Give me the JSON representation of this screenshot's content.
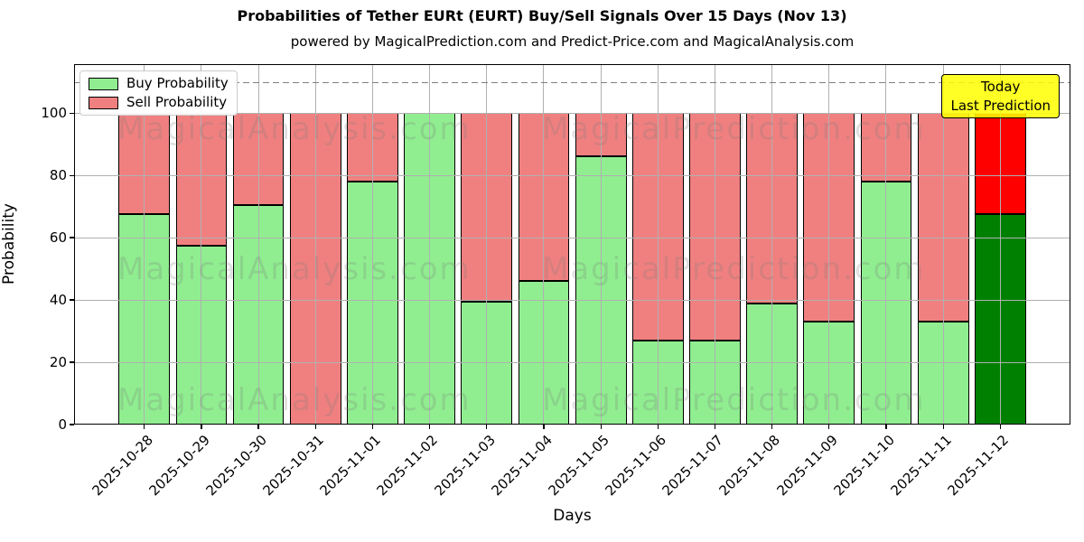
{
  "figure": {
    "title": "Probabilities of Tether EURt (EURT) Buy/Sell Signals Over 15 Days (Nov 13)",
    "subtitle": "powered by MagicalPrediction.com and Predict-Price.com and MagicalAnalysis.com"
  },
  "axes": {
    "xlabel": "Days",
    "ylabel": "Probability",
    "yticks": [
      0,
      20,
      40,
      60,
      80,
      100
    ],
    "dashed_line_y": 110,
    "grid_color": "#b0b0b0",
    "dashed_line_color": "#808080",
    "spine_color": "#000000"
  },
  "legend": {
    "items": [
      {
        "label": "Buy Probability",
        "color": "#90ee90"
      },
      {
        "label": "Sell Probability",
        "color": "#f08080"
      }
    ]
  },
  "annotation": {
    "lines": [
      "Today",
      "Last Prediction"
    ],
    "bg_color": "rgba(255,255,0,0.85)",
    "border_color": "#000000"
  },
  "watermarks": {
    "left_text": "MagicalAnalysis.com",
    "right_text": "MagicalPrediction.com",
    "color": "#787878",
    "opacity": 0.22
  },
  "chart_data": {
    "type": "bar",
    "stacked": true,
    "title": "Probabilities of Tether EURt (EURT) Buy/Sell Signals Over 15 Days (Nov 13)",
    "xlabel": "Days",
    "ylabel": "Probability",
    "ylim": [
      0,
      116
    ],
    "grid": true,
    "legend_position": "upper left",
    "categories": [
      "2025-10-28",
      "2025-10-29",
      "2025-10-30",
      "2025-10-31",
      "2025-11-01",
      "2025-11-02",
      "2025-11-03",
      "2025-11-04",
      "2025-11-05",
      "2025-11-06",
      "2025-11-07",
      "2025-11-08",
      "2025-11-09",
      "2025-11-10",
      "2025-11-11",
      "2025-11-12"
    ],
    "series": [
      {
        "name": "Buy Probability",
        "color": "#90ee90",
        "highlight_last_color": "#008000",
        "values": [
          67.5,
          57.5,
          70.5,
          0,
          78,
          100,
          39.5,
          46,
          86,
          27,
          27,
          39,
          33,
          78,
          33,
          67.5
        ]
      },
      {
        "name": "Sell Probability",
        "color": "#f08080",
        "highlight_last_color": "#ff0000",
        "values": [
          32.5,
          42.5,
          29.5,
          100,
          22,
          0,
          60.5,
          54,
          14,
          73,
          73,
          61,
          67,
          22,
          67,
          32.5
        ]
      }
    ]
  }
}
